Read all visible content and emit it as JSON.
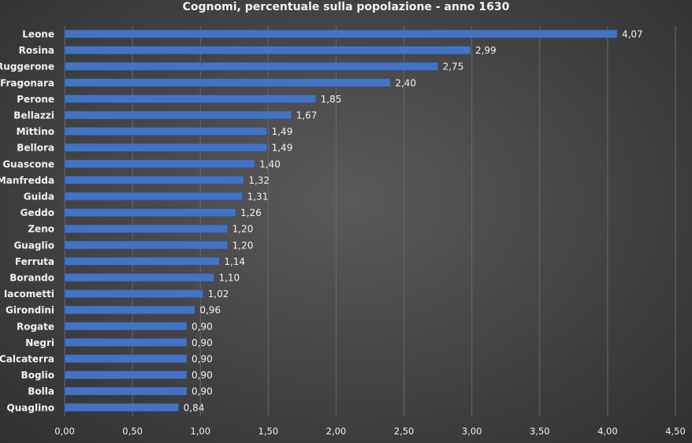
{
  "chart_data": {
    "type": "bar",
    "orientation": "horizontal",
    "title": "Cognomi, percentuale sulla popolazione - anno 1630",
    "xlabel": "",
    "ylabel": "",
    "categories": [
      "Leone",
      "Rosina",
      "Ruggerone",
      "Fragonara",
      "Perone",
      "Bellazzi",
      "Mittino",
      "Bellora",
      "Guascone",
      "Manfredda",
      "Guida",
      "Geddo",
      "Zeno",
      "Guaglio",
      "Ferruta",
      "Borando",
      "Iacometti",
      "Girondini",
      "Rogate",
      "Negri",
      "Calcaterra",
      "Boglio",
      "Bolla",
      "Quaglino"
    ],
    "values": [
      4.07,
      2.99,
      2.75,
      2.4,
      1.85,
      1.67,
      1.49,
      1.49,
      1.4,
      1.32,
      1.31,
      1.26,
      1.2,
      1.2,
      1.14,
      1.1,
      1.02,
      0.96,
      0.9,
      0.9,
      0.9,
      0.9,
      0.9,
      0.84
    ],
    "value_labels": [
      "4,07",
      "2,99",
      "2,75",
      "2,40",
      "1,85",
      "1,67",
      "1,49",
      "1,49",
      "1,40",
      "1,32",
      "1,31",
      "1,26",
      "1,20",
      "1,20",
      "1,14",
      "1,10",
      "1,02",
      "0,96",
      "0,90",
      "0,90",
      "0,90",
      "0,90",
      "0,90",
      "0,84"
    ],
    "xlim": [
      0,
      4.5
    ],
    "ticks": [
      0,
      0.5,
      1,
      1.5,
      2,
      2.5,
      3,
      3.5,
      4,
      4.5
    ],
    "tick_labels": [
      "0,00",
      "0,50",
      "1,00",
      "1,50",
      "2,00",
      "2,50",
      "3,00",
      "3,50",
      "4,00",
      "4,50"
    ],
    "grid": true,
    "legend": "none",
    "colors": {
      "bar": "#4472c4",
      "bar_edge": "#2f5597",
      "gridline": "#6a6a6a",
      "text": "#f2f2f2"
    }
  }
}
